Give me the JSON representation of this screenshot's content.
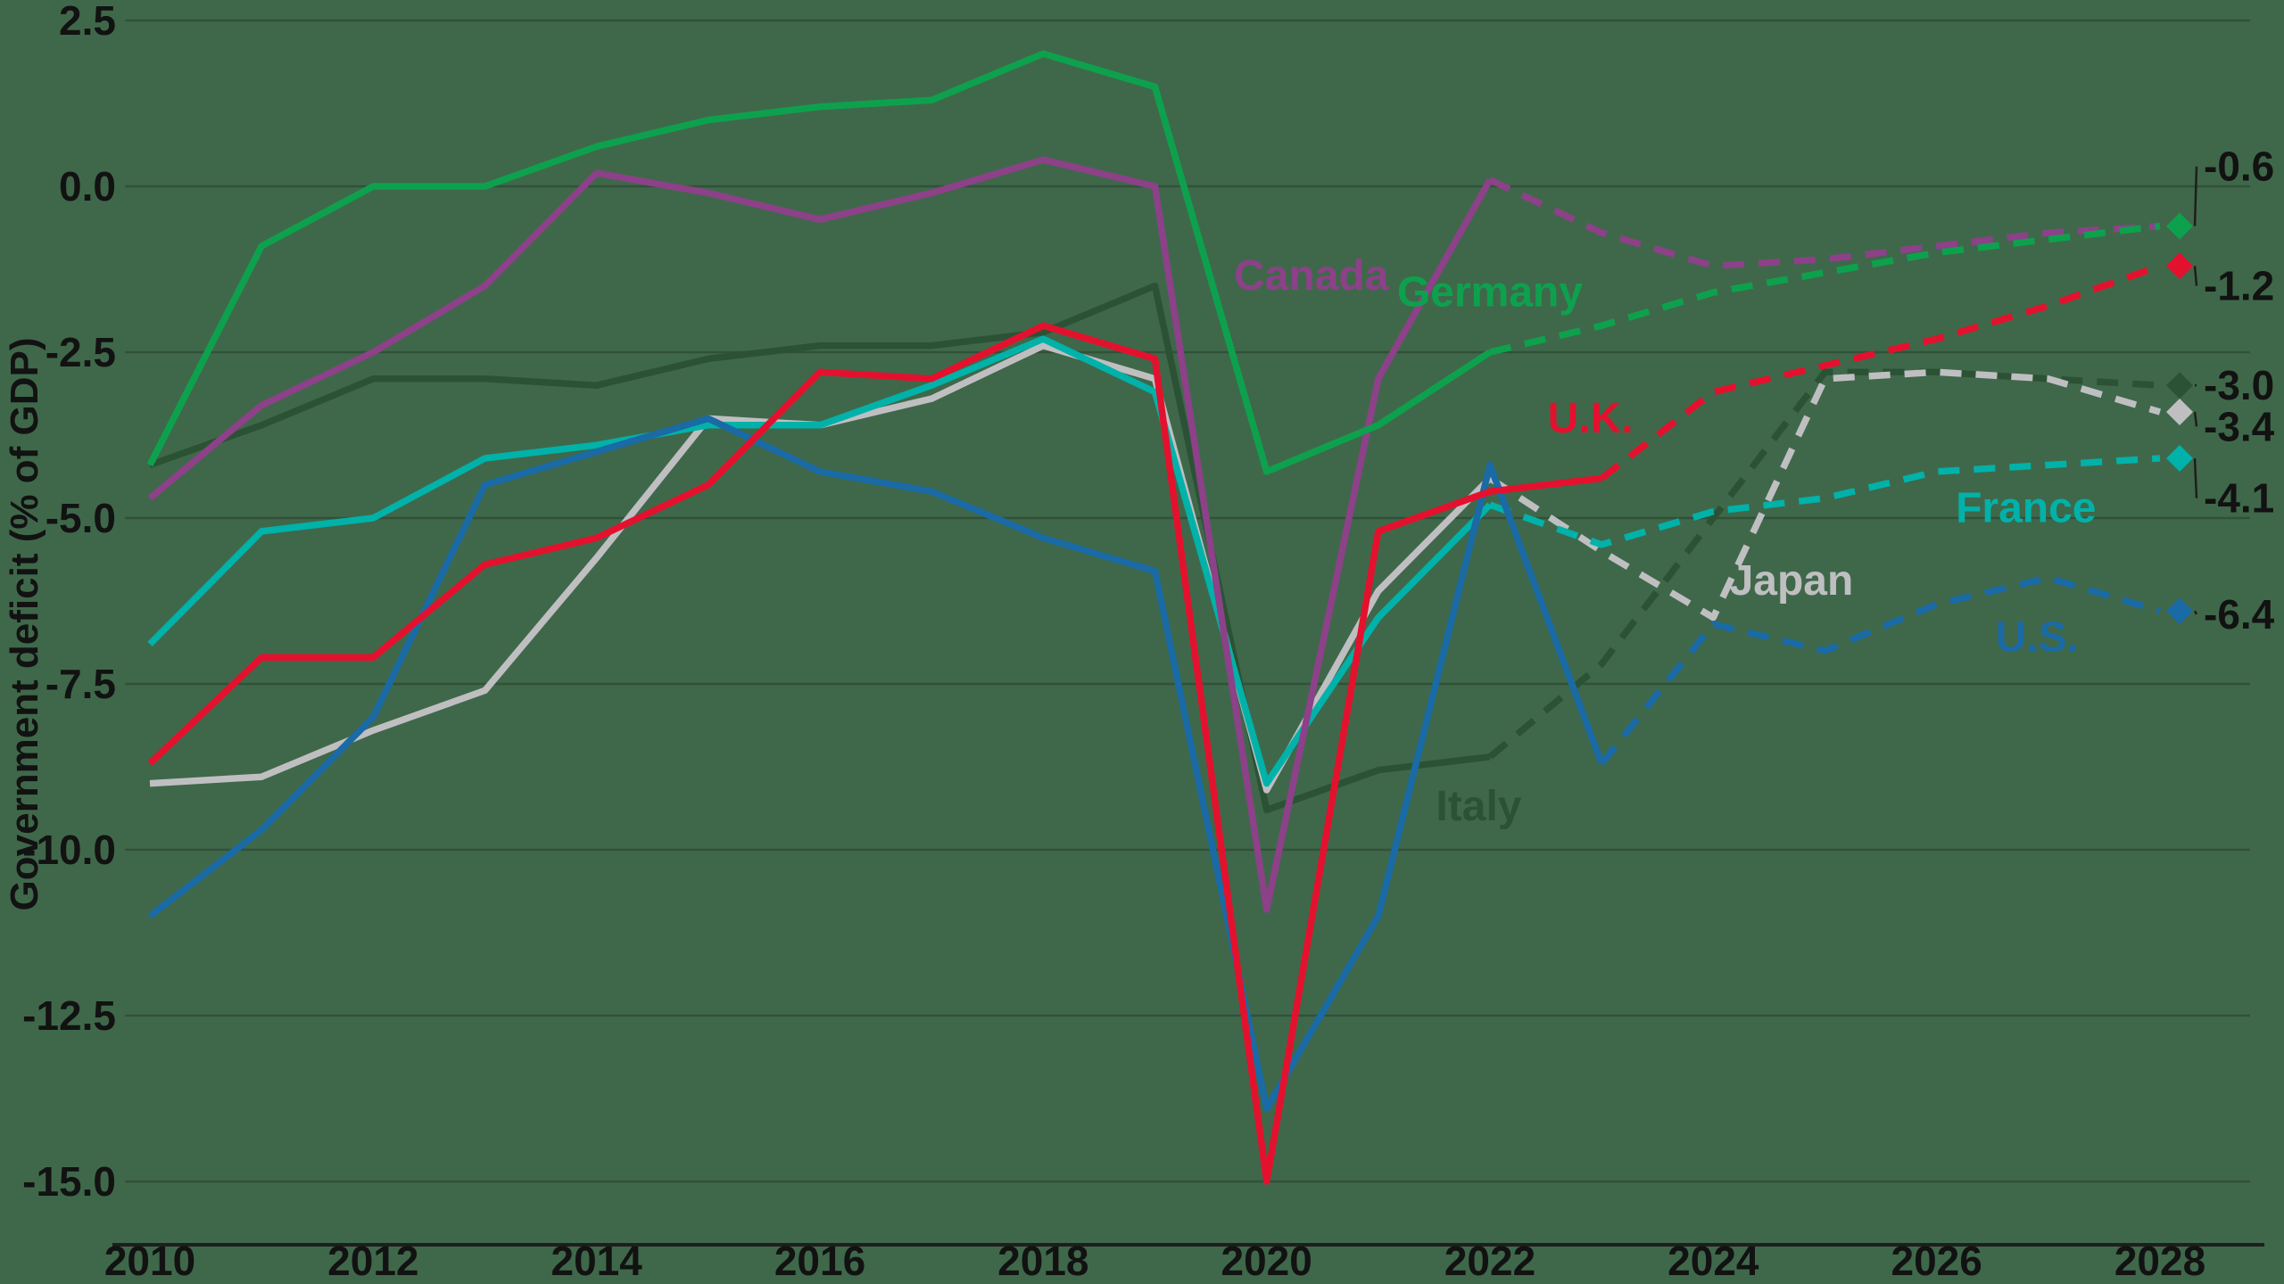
{
  "chart_data": {
    "type": "line",
    "title": "",
    "ylabel": "Government deficit (% of GDP)",
    "xlabel": "",
    "grid": "horizontal",
    "ylim": [
      -15.0,
      2.5
    ],
    "x_ticks": [
      2010,
      2012,
      2014,
      2016,
      2018,
      2020,
      2022,
      2024,
      2026,
      2028
    ],
    "y_ticks": [
      {
        "label": "2.5",
        "value": 2.5
      },
      {
        "label": "0.0",
        "value": 0.0
      },
      {
        "label": "-2.5",
        "value": -2.5
      },
      {
        "label": "-5.0",
        "value": -5.0
      },
      {
        "label": "-7.5",
        "value": -7.5
      },
      {
        "label": "-10.0",
        "value": -10.0
      },
      {
        "label": "-12.5",
        "value": -12.5
      },
      {
        "label": "-15.0",
        "value": -15.0
      }
    ],
    "years": [
      2010,
      2011,
      2012,
      2013,
      2014,
      2015,
      2016,
      2017,
      2018,
      2019,
      2020,
      2021,
      2022,
      2023,
      2024,
      2025,
      2026,
      2027,
      2028
    ],
    "projection_style": "dashed",
    "colors": {
      "background": "#3F684A",
      "grid": "rgba(0,0,0,0.22)",
      "axis": "#1E1E1E",
      "text": "#121212"
    },
    "series": [
      {
        "name": "Italy",
        "color": "#2C5235",
        "solid_until": 2022,
        "end_value": -3.0,
        "values": [
          -4.2,
          -3.6,
          -2.9,
          -2.9,
          -3.0,
          -2.6,
          -2.4,
          -2.4,
          -2.2,
          -1.5,
          -9.4,
          -8.8,
          -8.6,
          -7.2,
          -5.0,
          -2.8,
          -2.8,
          -2.9,
          -3.0
        ]
      },
      {
        "name": "Japan",
        "color": "#BFBFC1",
        "solid_until": 2022,
        "end_value": -3.4,
        "values": [
          -9.0,
          -8.9,
          -8.2,
          -7.6,
          -5.6,
          -3.5,
          -3.6,
          -3.2,
          -2.4,
          -2.9,
          -9.1,
          -6.1,
          -4.4,
          -5.5,
          -6.5,
          -2.9,
          -2.8,
          -2.9,
          -3.4
        ]
      },
      {
        "name": "France",
        "color": "#00B2A9",
        "solid_until": 2022,
        "end_value": -4.1,
        "values": [
          -6.9,
          -5.2,
          -5.0,
          -4.1,
          -3.9,
          -3.6,
          -3.6,
          -3.0,
          -2.3,
          -3.1,
          -9.0,
          -6.5,
          -4.8,
          -5.4,
          -4.9,
          -4.7,
          -4.3,
          -4.2,
          -4.1
        ]
      },
      {
        "name": "U.S.",
        "color": "#1A6AA5",
        "solid_until": 2023,
        "end_value": -6.4,
        "values": [
          -11.0,
          -9.7,
          -8.0,
          -4.5,
          -4.0,
          -3.5,
          -4.3,
          -4.6,
          -5.3,
          -5.8,
          -13.9,
          -11.0,
          -4.2,
          -8.7,
          -6.6,
          -7.0,
          -6.3,
          -5.9,
          -6.4
        ]
      },
      {
        "name": "U.K.",
        "color": "#E4112E",
        "solid_until": 2023,
        "end_value": -1.2,
        "values": [
          -8.7,
          -7.1,
          -7.1,
          -5.7,
          -5.3,
          -4.5,
          -2.8,
          -2.9,
          -2.1,
          -2.6,
          -15.0,
          -5.2,
          -4.6,
          -4.4,
          -3.1,
          -2.7,
          -2.3,
          -1.8,
          -1.2
        ]
      },
      {
        "name": "Canada",
        "color": "#8C4188",
        "solid_until": 2022,
        "end_value": -0.6,
        "values": [
          -4.7,
          -3.3,
          -2.5,
          -1.5,
          0.2,
          -0.1,
          -0.5,
          -0.1,
          0.4,
          0.0,
          -10.9,
          -2.9,
          0.1,
          -0.7,
          -1.2,
          -1.1,
          -0.9,
          -0.7,
          -0.6
        ]
      },
      {
        "name": "Germany",
        "color": "#0DA14E",
        "solid_until": 2022,
        "end_value": -0.6,
        "values": [
          -4.2,
          -0.9,
          0.0,
          0.0,
          0.6,
          1.0,
          1.2,
          1.3,
          2.0,
          1.5,
          -4.3,
          -3.6,
          -2.5,
          -2.1,
          -1.6,
          -1.3,
          -1.0,
          -0.8,
          -0.6
        ]
      }
    ],
    "annotations": [
      {
        "text": "Canada",
        "series": "Canada",
        "x": 2020.4,
        "y": -1.35
      },
      {
        "text": "Germany",
        "series": "Germany",
        "x": 2022.0,
        "y": -1.6
      },
      {
        "text": "U.K.",
        "series": "U.K.",
        "x": 2022.9,
        "y": -3.5
      },
      {
        "text": "France",
        "series": "France",
        "x": 2026.8,
        "y": -4.85
      },
      {
        "text": "Japan",
        "series": "Japan",
        "x": 2024.7,
        "y": -5.95
      },
      {
        "text": "Italy",
        "series": "Italy",
        "x": 2021.9,
        "y": -9.35
      },
      {
        "text": "U.S.",
        "series": "U.S.",
        "x": 2026.9,
        "y": -6.8
      }
    ],
    "end_labels": [
      {
        "text": "-0.6",
        "series": "Germany",
        "value": -0.6,
        "label_value": 0.3
      },
      {
        "text": "-1.2",
        "series": "U.K.",
        "value": -1.2,
        "label_value": -1.5
      },
      {
        "text": "-3.0",
        "series": "Italy",
        "value": -3.0,
        "label_value": -3.0
      },
      {
        "text": "-3.4",
        "series": "Japan",
        "value": -3.4,
        "label_value": -3.62
      },
      {
        "text": "-4.1",
        "series": "France",
        "value": -4.1,
        "label_value": -4.7
      },
      {
        "text": "-6.4",
        "series": "U.S.",
        "value": -6.4,
        "label_value": -6.45
      }
    ]
  }
}
